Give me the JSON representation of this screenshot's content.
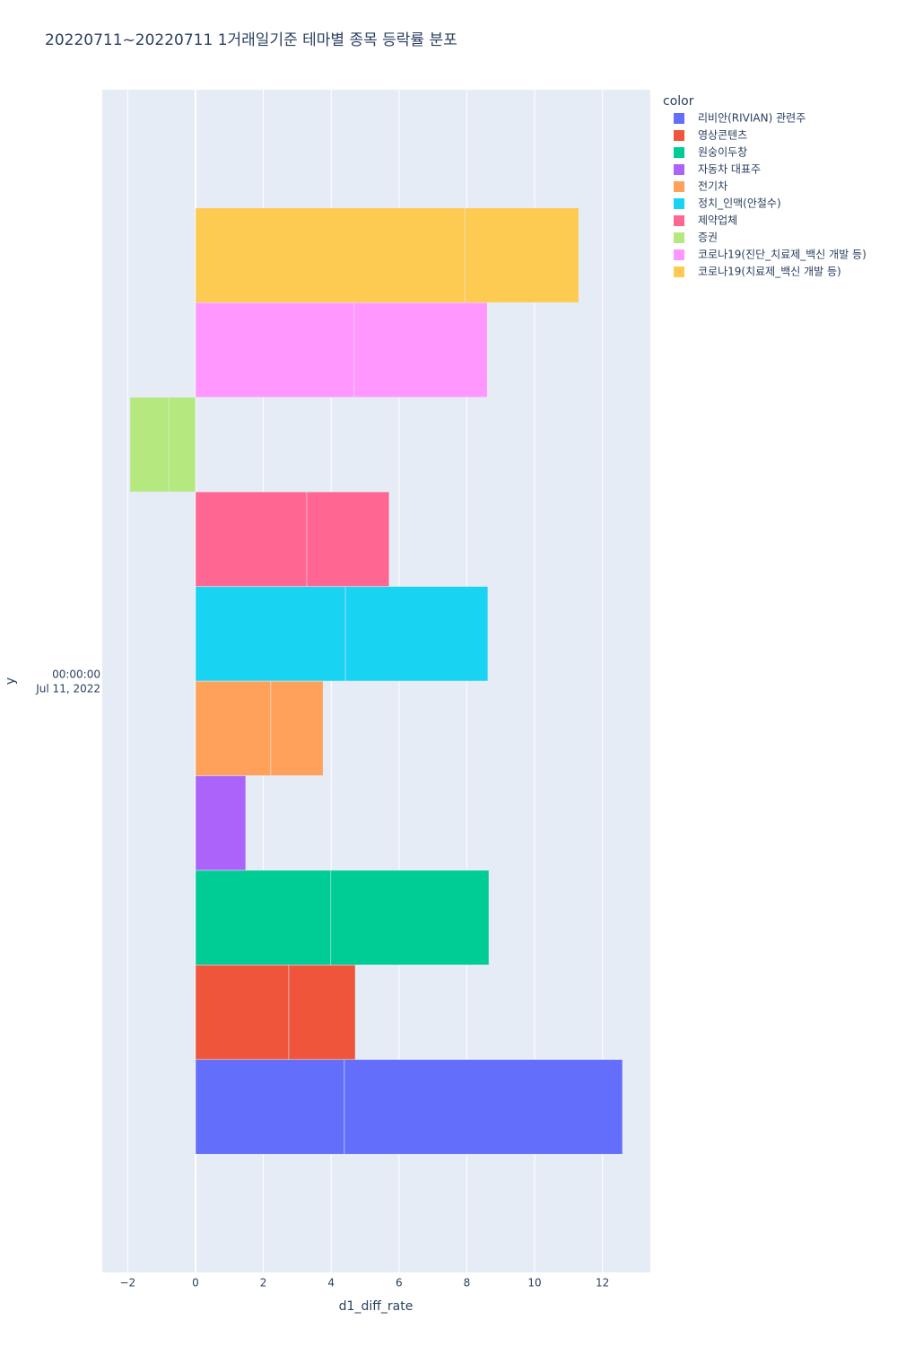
{
  "chart_data": {
    "type": "bar",
    "orientation": "horizontal",
    "barmode": "relative",
    "title": "20220711~20220711 1거래일기준 테마별 종목 등락률 분포",
    "x_label": "d1_diff_rate",
    "y_label": "y",
    "legend_title": "color",
    "category_label": [
      "00:00:00",
      "Jul 11, 2022"
    ],
    "xlim": [
      -2.75,
      13.41
    ],
    "xticks": [
      {
        "value": -2,
        "label": "−2"
      },
      0,
      2,
      4,
      6,
      8,
      10,
      12
    ],
    "grid": true,
    "series": [
      {
        "name": "리비안(RIVIAN) 관련주",
        "color": "#636efa",
        "values": [
          4.39,
          8.2
        ]
      },
      {
        "name": "영상콘텐츠",
        "color": "#ef553b",
        "values": [
          2.75,
          1.96
        ]
      },
      {
        "name": "원숭이두창",
        "color": "#00cc96",
        "values": [
          3.99,
          4.66
        ]
      },
      {
        "name": "자동차 대표주",
        "color": "#ab63fa",
        "values": [
          1.48
        ]
      },
      {
        "name": "전기차",
        "color": "#ffa15a",
        "values": [
          2.22,
          1.54
        ]
      },
      {
        "name": "정치_인맥(안철수)",
        "color": "#19d3f3",
        "values": [
          4.42,
          4.2
        ]
      },
      {
        "name": "제약업체",
        "color": "#ff6692",
        "values": [
          3.28,
          2.43
        ]
      },
      {
        "name": "증권",
        "color": "#b6e880",
        "values": [
          -0.79,
          -1.14
        ]
      },
      {
        "name": "코로나19(진단_치료제_백신 개발 등)",
        "color": "#ff97ff",
        "values": [
          4.68,
          3.92
        ]
      },
      {
        "name": "코로나19(치료제_백신 개발 등)",
        "color": "#fecb52",
        "values": [
          7.94,
          3.36
        ]
      }
    ]
  }
}
